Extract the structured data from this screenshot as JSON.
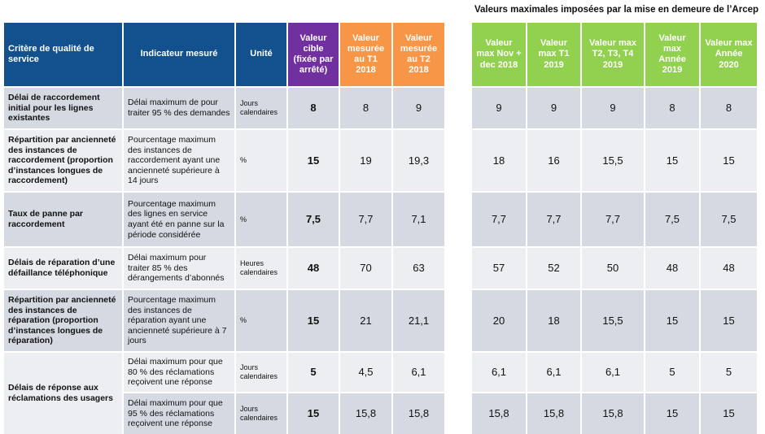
{
  "header": {
    "title": "Valeurs maximales imposées par la mise en demeure de l’Arcep"
  },
  "columns": [
    "Critère de qualité de service",
    "Indicateur mesuré",
    "Unité",
    "Valeur cible (fixée par arrêté)",
    "Valeur mesurée au T1 2018",
    "Valeur mesurée au T2 2018",
    "Valeur max Nov + dec 2018",
    "Valeur max T1 2019",
    "Valeur max T2, T3, T4 2019",
    "Valeur max Année 2019",
    "Valeur max Année 2020"
  ],
  "criteria": [
    {
      "label": "Délai de raccordement initial pour les lignes existantes",
      "measures": [
        {
          "indicator": "Délai maximum de pour traiter 95 % des demandes",
          "unit": "Jours calendaires",
          "values": [
            "8",
            "8",
            "9",
            "9",
            "9",
            "9",
            "8",
            "8"
          ]
        }
      ]
    },
    {
      "label": "Répartition par ancienneté des instances de raccordement (proportion d’instances longues de raccordement)",
      "measures": [
        {
          "indicator": "Pourcentage maximum des instances de raccordement ayant une ancienneté supérieure à 14 jours",
          "unit": "%",
          "values": [
            "15",
            "19",
            "19,3",
            "18",
            "16",
            "15,5",
            "15",
            "15"
          ]
        }
      ]
    },
    {
      "label": "Taux de panne par raccordement",
      "measures": [
        {
          "indicator": "Pourcentage maximum des lignes en service ayant été en panne sur la période considérée",
          "unit": "%",
          "values": [
            "7,5",
            "7,7",
            "7,1",
            "7,7",
            "7,7",
            "7,7",
            "7,5",
            "7,5"
          ]
        }
      ]
    },
    {
      "label": "Délais de réparation d’une défaillance téléphonique",
      "measures": [
        {
          "indicator": "Délai maximum pour traiter 85 % des dérangements d’abonnés",
          "unit": "Heures calendaires",
          "values": [
            "48",
            "70",
            "63",
            "57",
            "52",
            "50",
            "48",
            "48"
          ]
        }
      ]
    },
    {
      "label": "Répartition par ancienneté des instances de réparation (proportion d’instances longues de réparation)",
      "measures": [
        {
          "indicator": "Pourcentage maximum des instances de réparation ayant une ancienneté supérieure à 7 jours",
          "unit": "%",
          "values": [
            "15",
            "21",
            "21,1",
            "20",
            "18",
            "15,5",
            "15",
            "15"
          ]
        }
      ]
    },
    {
      "label": "Délais de réponse aux réclamations des usagers",
      "measures": [
        {
          "indicator": "Délai maximum pour que 80 % des réclamations reçoivent une réponse",
          "unit": "Jours calendaires",
          "values": [
            "5",
            "4,5",
            "6,1",
            "6,1",
            "6,1",
            "6,1",
            "5",
            "5"
          ]
        },
        {
          "indicator": "Délai maximum pour que 95 % des réclamations reçoivent une réponse",
          "unit": "Jours calendaires",
          "values": [
            "15",
            "15,8",
            "15,8",
            "15,8",
            "15,8",
            "15,8",
            "15",
            "15"
          ]
        }
      ]
    }
  ]
}
